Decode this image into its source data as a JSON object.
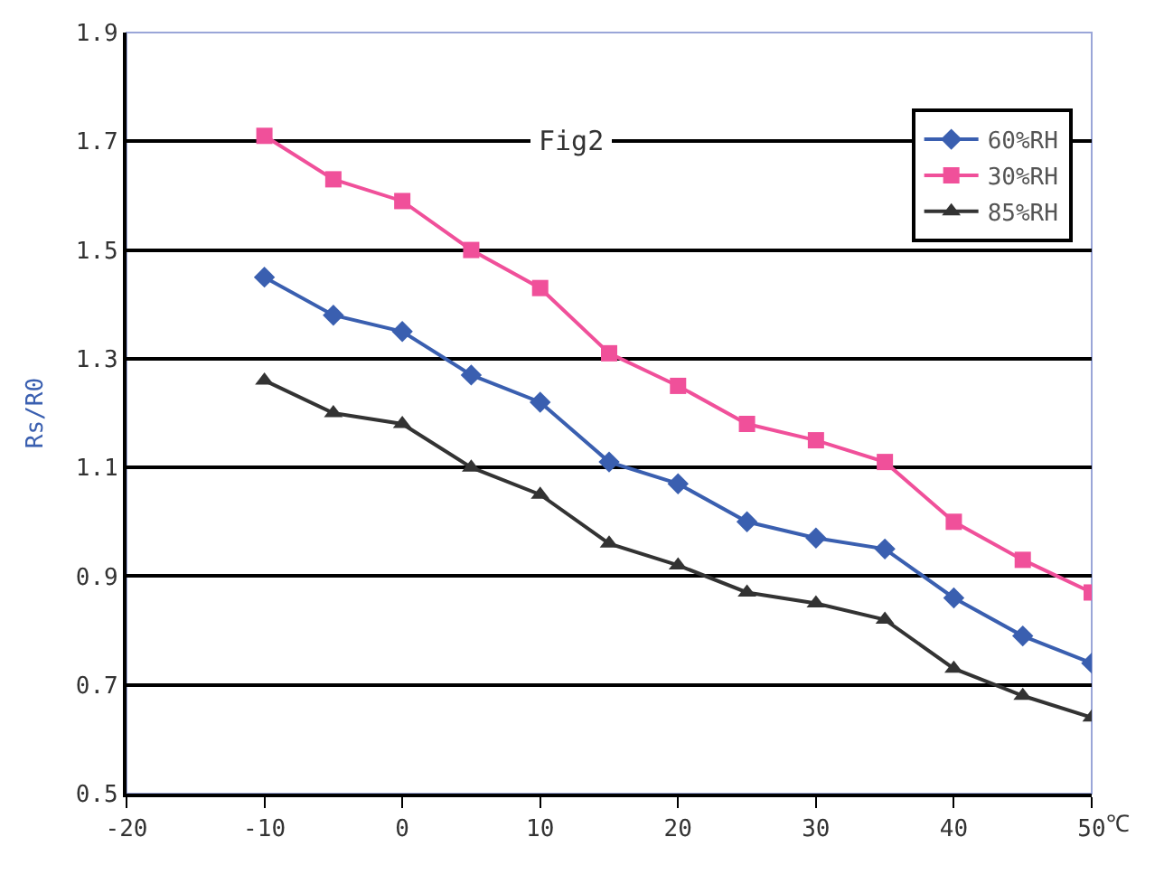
{
  "chart_data": {
    "type": "line",
    "title": "Fig2",
    "xlabel": "℃",
    "ylabel": "Rs/R0",
    "x": [
      -10,
      -5,
      0,
      5,
      10,
      15,
      20,
      25,
      30,
      35,
      40,
      45,
      50
    ],
    "series": [
      {
        "name": "60%RH",
        "color": "#3a5fb0",
        "marker": "diamond",
        "values": [
          1.45,
          1.38,
          1.35,
          1.27,
          1.22,
          1.11,
          1.07,
          1.0,
          0.97,
          0.95,
          0.86,
          0.79,
          0.74
        ]
      },
      {
        "name": "30%RH",
        "color": "#f0509a",
        "marker": "square",
        "values": [
          1.71,
          1.63,
          1.59,
          1.5,
          1.43,
          1.31,
          1.25,
          1.18,
          1.15,
          1.11,
          1.0,
          0.93,
          0.87
        ]
      },
      {
        "name": "85%RH",
        "color": "#333333",
        "marker": "triangle",
        "values": [
          1.26,
          1.2,
          1.18,
          1.1,
          1.05,
          0.96,
          0.92,
          0.87,
          0.85,
          0.82,
          0.73,
          0.68,
          0.64
        ]
      }
    ],
    "xlim": [
      -20,
      50
    ],
    "xticks": [
      -20,
      -10,
      0,
      10,
      20,
      30,
      40,
      50
    ],
    "ylim": [
      0.5,
      1.9
    ],
    "yticks": [
      0.5,
      0.7,
      0.9,
      1.1,
      1.3,
      1.5,
      1.7,
      1.9
    ],
    "grid": "y",
    "legend": "top right",
    "line_style": "solid"
  }
}
